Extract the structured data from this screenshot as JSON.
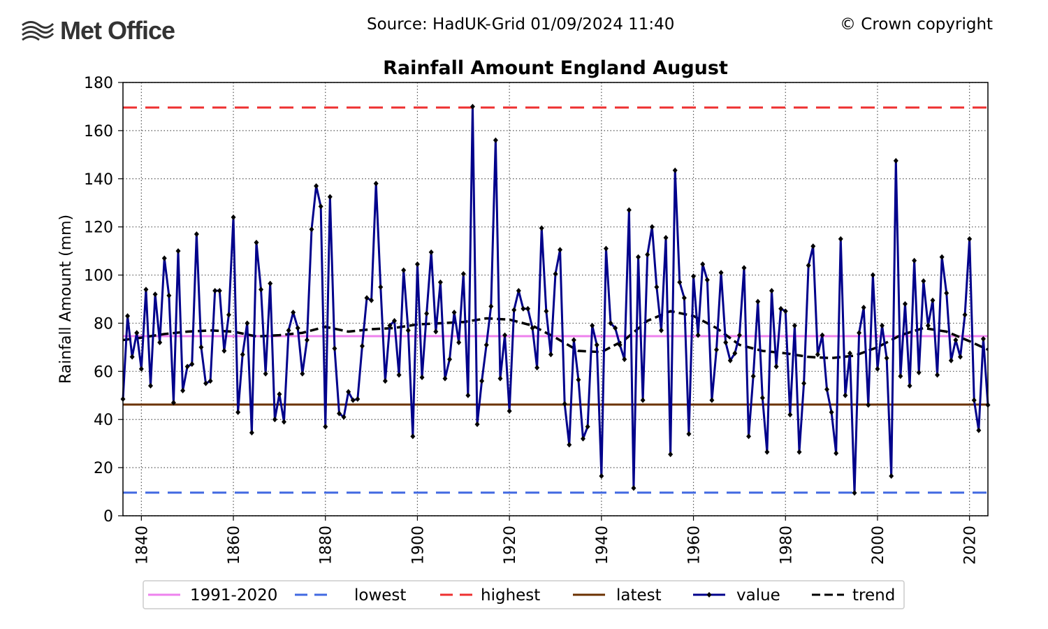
{
  "header": {
    "logo_text": "Met Office",
    "source": "Source: HadUK-Grid 01/09/2024 11:40",
    "copyright": "© Crown copyright"
  },
  "chart_data": {
    "type": "line",
    "title": "Rainfall Amount England August",
    "xlabel": "",
    "ylabel": "Rainfall Amount (mm)",
    "xlim": [
      1836,
      2024
    ],
    "ylim": [
      0,
      180
    ],
    "x_ticks": [
      1840,
      1860,
      1880,
      1900,
      1920,
      1940,
      1960,
      1980,
      2000,
      2020
    ],
    "y_ticks": [
      0,
      20,
      40,
      60,
      80,
      100,
      120,
      140,
      160,
      180
    ],
    "grid": true,
    "legend": {
      "placement": "bottom-center",
      "entries": [
        {
          "key": "baseline",
          "label": "1991-2020"
        },
        {
          "key": "lowest",
          "label": "lowest"
        },
        {
          "key": "highest",
          "label": "highest"
        },
        {
          "key": "latest",
          "label": "latest"
        },
        {
          "key": "value",
          "label": "value"
        },
        {
          "key": "trend",
          "label": "trend"
        }
      ]
    },
    "colors": {
      "baseline": "#ee82ee",
      "lowest": "#4169e1",
      "highest": "#ee3030",
      "latest": "#6b3200",
      "value": "#00008b",
      "trend": "#000000"
    },
    "reference_lines": {
      "baseline": 74.6,
      "lowest": 9.6,
      "highest": 169.6,
      "latest": 46.2
    },
    "series": [
      {
        "name": "value",
        "x_start": 1836,
        "values": [
          48.5,
          83,
          66,
          76,
          61,
          94,
          54,
          92,
          72,
          107,
          91.5,
          47,
          110,
          52,
          62,
          63,
          117,
          70,
          55,
          56,
          93.5,
          93.5,
          68.5,
          83.5,
          124,
          43,
          67,
          80,
          34.5,
          113.5,
          94,
          59,
          96.5,
          40,
          50.5,
          39,
          77,
          84.5,
          78,
          59,
          73,
          119,
          137,
          128.5,
          37,
          132.5,
          69.5,
          42.5,
          41,
          51.5,
          48,
          48.5,
          70.5,
          90.5,
          89.5,
          138,
          95,
          56,
          79,
          81,
          58.5,
          102,
          77,
          33,
          104.5,
          57.5,
          84,
          109.5,
          76.5,
          97,
          57,
          65,
          84.5,
          72,
          100.5,
          50,
          170,
          38,
          56,
          71,
          87,
          156,
          57,
          75,
          43.5,
          85.5,
          93.5,
          86,
          86,
          78,
          61.5,
          119.5,
          85,
          67,
          100.5,
          110.5,
          46.5,
          29.5,
          73,
          56.5,
          32,
          37,
          79,
          71,
          16.5,
          111,
          80,
          78,
          71,
          65,
          127,
          11.5,
          107.5,
          48,
          108.5,
          120,
          95,
          77,
          115.5,
          25.5,
          143.5,
          97,
          90.5,
          34,
          99.5,
          75,
          104.5,
          98,
          48,
          69,
          101,
          72,
          64.5,
          67.5,
          75,
          103,
          33,
          58,
          89,
          49,
          26.5,
          93.5,
          62,
          86,
          85,
          42,
          79,
          26.5,
          55,
          104,
          112,
          67,
          75,
          52.5,
          43,
          26,
          115,
          50,
          67.5,
          9.5,
          76,
          86.5,
          46,
          100,
          61,
          79,
          65.5,
          16.5,
          147.5,
          58,
          88,
          54,
          106,
          59.5,
          97.5,
          79,
          89.5,
          58.5,
          107.5,
          92.5,
          64.5,
          73,
          66,
          83.5,
          115,
          48,
          35.5,
          73.5,
          46
        ]
      },
      {
        "name": "trend",
        "x": [
          1836,
          1840,
          1845,
          1850,
          1855,
          1860,
          1865,
          1870,
          1875,
          1880,
          1885,
          1890,
          1895,
          1900,
          1905,
          1910,
          1915,
          1920,
          1925,
          1930,
          1935,
          1940,
          1945,
          1950,
          1955,
          1960,
          1965,
          1970,
          1975,
          1980,
          1985,
          1990,
          1995,
          2000,
          2005,
          2010,
          2015,
          2020,
          2024
        ],
        "values": [
          73,
          74,
          75.5,
          76.5,
          77,
          76.5,
          74.5,
          75,
          76,
          78.5,
          76.5,
          77.5,
          78,
          79.5,
          80,
          80.5,
          82,
          81.5,
          79,
          74,
          68.5,
          68,
          73,
          81,
          85,
          83,
          78,
          71,
          68.5,
          67.5,
          66,
          65.5,
          66.5,
          70,
          75,
          78,
          76.5,
          72.5,
          69
        ]
      }
    ]
  }
}
